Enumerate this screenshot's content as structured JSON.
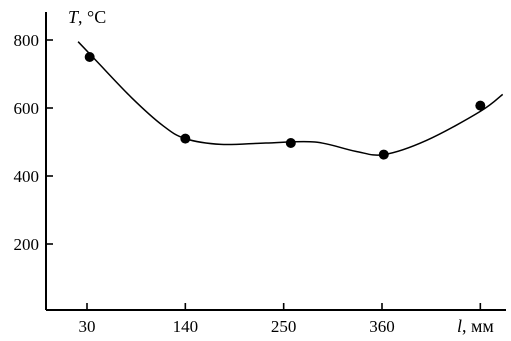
{
  "chart_data": {
    "type": "scatter",
    "title": "",
    "ylabel_italic": "T",
    "ylabel_rest": ", °C",
    "xlabel_italic": "l",
    "xlabel_rest": ", мм",
    "ylim": [
      0,
      860
    ],
    "yticks": [
      200,
      400,
      600,
      800
    ],
    "ytick_labels": [
      "200",
      "400",
      "600",
      "800"
    ],
    "xlim": [
      0,
      430
    ],
    "xticks": [
      30,
      140,
      250,
      360
    ],
    "xtick_labels": [
      "30",
      "140",
      "250",
      "360"
    ],
    "extra_xtick": 470,
    "grid": false,
    "points": [
      {
        "x": 33,
        "y": 750
      },
      {
        "x": 140,
        "y": 510
      },
      {
        "x": 258,
        "y": 497
      },
      {
        "x": 362,
        "y": 463
      },
      {
        "x": 470,
        "y": 607
      }
    ],
    "curve": [
      {
        "x": 20,
        "y": 795
      },
      {
        "x": 40,
        "y": 740
      },
      {
        "x": 80,
        "y": 630
      },
      {
        "x": 115,
        "y": 548
      },
      {
        "x": 140,
        "y": 510
      },
      {
        "x": 180,
        "y": 493
      },
      {
        "x": 230,
        "y": 497
      },
      {
        "x": 285,
        "y": 500
      },
      {
        "x": 330,
        "y": 473
      },
      {
        "x": 362,
        "y": 463
      },
      {
        "x": 410,
        "y": 505
      },
      {
        "x": 470,
        "y": 590
      },
      {
        "x": 495,
        "y": 640
      }
    ]
  }
}
